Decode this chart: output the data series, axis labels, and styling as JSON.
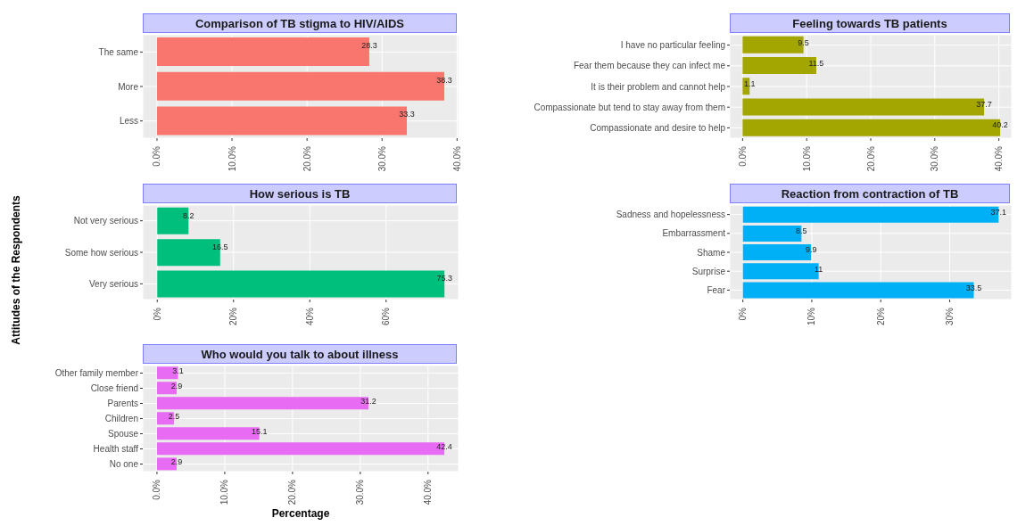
{
  "chart_data": [
    {
      "type": "bar",
      "orientation": "horizontal",
      "title": "Comparison of TB stigma to HIV/AIDS",
      "categories": [
        "The same",
        "More",
        "Less"
      ],
      "values": [
        28.3,
        38.3,
        33.3
      ],
      "color": "#f8766d",
      "data_labels": true,
      "grid": true,
      "xlim": [
        -1.9,
        40.2
      ],
      "xticks": [
        {
          "value": 0,
          "label": "0.0%"
        },
        {
          "value": 10,
          "label": "10.0%"
        },
        {
          "value": 20,
          "label": "20.0%"
        },
        {
          "value": 30,
          "label": "30.0%"
        },
        {
          "value": 40,
          "label": "40.0%"
        }
      ]
    },
    {
      "type": "bar",
      "orientation": "horizontal",
      "title": "Feeling towards TB patients",
      "categories": [
        "I have no particular feeling",
        "Fear them because they can infect me",
        "It is their problem and cannot help",
        "Compassionate but tend to stay away from them",
        "Compassionate and desire to help"
      ],
      "values": [
        9.5,
        11.5,
        1.1,
        37.7,
        40.2
      ],
      "color": "#a3a500",
      "data_labels": true,
      "grid": true,
      "xlim": [
        -2,
        42
      ],
      "xticks": [
        {
          "value": 0,
          "label": "0.0%"
        },
        {
          "value": 10,
          "label": "10.0%"
        },
        {
          "value": 20,
          "label": "20.0%"
        },
        {
          "value": 30,
          "label": "30.0%"
        },
        {
          "value": 40,
          "label": "40.0%"
        }
      ]
    },
    {
      "type": "bar",
      "orientation": "horizontal",
      "title": "How serious is TB",
      "ylabel": "Attitudes of the Respondents",
      "categories": [
        "Not very serious",
        "Some how serious",
        "Very serious"
      ],
      "values": [
        8.2,
        16.5,
        75.3
      ],
      "color": "#00bf7d",
      "data_labels": true,
      "grid": true,
      "xlim": [
        -3.8,
        79
      ],
      "xticks": [
        {
          "value": 0,
          "label": "0%"
        },
        {
          "value": 20,
          "label": "20%"
        },
        {
          "value": 40,
          "label": "40%"
        },
        {
          "value": 60,
          "label": "60%"
        }
      ]
    },
    {
      "type": "bar",
      "orientation": "horizontal",
      "title": "Reaction from contraction of TB",
      "categories": [
        "Sadness and hopelessness",
        "Embarrassment",
        "Shame",
        "Surprise",
        "Fear"
      ],
      "values": [
        37.1,
        8.5,
        9.9,
        11,
        33.5
      ],
      "color": "#00b0f6",
      "data_labels": true,
      "grid": true,
      "xlim": [
        -1.9,
        39
      ],
      "xticks": [
        {
          "value": 0,
          "label": "0%"
        },
        {
          "value": 10,
          "label": "10%"
        },
        {
          "value": 20,
          "label": "20%"
        },
        {
          "value": 30,
          "label": "30%"
        }
      ]
    },
    {
      "type": "bar",
      "orientation": "horizontal",
      "title": "Who would you talk to about illness",
      "xlabel": "Percentage",
      "categories": [
        "Other family member",
        "Close friend",
        "Parents",
        "Children",
        "Spouse",
        "Health staff",
        "No one"
      ],
      "values": [
        3.1,
        2.9,
        31.2,
        2.5,
        15.1,
        42.4,
        2.9
      ],
      "color": "#e76bf3",
      "data_labels": true,
      "grid": true,
      "xlim": [
        -2.1,
        44.5
      ],
      "xticks": [
        {
          "value": 0,
          "label": "0.0%"
        },
        {
          "value": 10,
          "label": "10.0%"
        },
        {
          "value": 20,
          "label": "20.0%"
        },
        {
          "value": 30,
          "label": "30.0%"
        },
        {
          "value": 40,
          "label": "40.0%"
        }
      ]
    }
  ]
}
